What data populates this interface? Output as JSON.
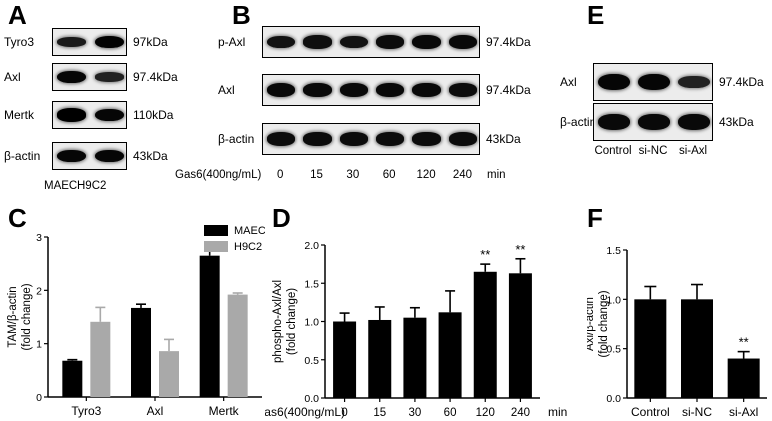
{
  "panels": {
    "A": {
      "letter": "A",
      "rows": [
        {
          "label": "Tyro3",
          "kda": "97kDa",
          "bands": [
            0.55,
            0.95
          ]
        },
        {
          "label": "Axl",
          "kda": "97.4kDa",
          "bands": [
            0.9,
            0.45
          ]
        },
        {
          "label": "Mertk",
          "kda": "110kDa",
          "bands": [
            1.0,
            0.9
          ]
        },
        {
          "label": "β-actin",
          "kda": "43kDa",
          "bands": [
            0.9,
            0.9
          ]
        }
      ],
      "lanes": [
        "MAEC",
        "H9C2"
      ]
    },
    "B": {
      "letter": "B",
      "rows": [
        {
          "label": "p-Axl",
          "kda": "97.4kDa",
          "bands": [
            0.7,
            0.75,
            0.7,
            0.8,
            0.85,
            0.85
          ]
        },
        {
          "label": "Axl",
          "kda": "97.4kDa",
          "bands": [
            0.85,
            0.85,
            0.85,
            0.85,
            0.85,
            0.8
          ]
        },
        {
          "label": "β-actin",
          "kda": "43kDa",
          "bands": [
            0.8,
            0.8,
            0.8,
            0.8,
            0.8,
            0.8
          ]
        }
      ],
      "gas6_label": "Gas6(400ng/mL)",
      "lanes": [
        "0",
        "15",
        "30",
        "60",
        "120",
        "240"
      ],
      "unit": "min"
    },
    "E": {
      "letter": "E",
      "rows": [
        {
          "label": "Axl",
          "kda": "97.4kDa",
          "bands": [
            0.9,
            0.9,
            0.45
          ]
        },
        {
          "label": "β-actin",
          "kda": "43kDa",
          "bands": [
            0.85,
            0.85,
            0.85
          ]
        }
      ],
      "lanes": [
        "Control",
        "si-NC",
        "si-Axl"
      ]
    }
  },
  "chart_data": [
    {
      "panel": "C",
      "type": "bar",
      "ylabel": "TAM/β-actin\n(fold change)",
      "categories": [
        "Tyro3",
        "Axl",
        "Mertk"
      ],
      "series": [
        {
          "name": "MAEC",
          "color": "#000000",
          "values": [
            0.68,
            1.67,
            2.65
          ],
          "errors": [
            0.02,
            0.07,
            0.2
          ]
        },
        {
          "name": "H9C2",
          "color": "#a9a9a9",
          "values": [
            1.41,
            0.86,
            1.92
          ],
          "errors": [
            0.27,
            0.22,
            0.03
          ]
        }
      ],
      "ylim": [
        0,
        3
      ],
      "yticks": [
        "0",
        "1",
        "2",
        "3"
      ],
      "legend": "top-right"
    },
    {
      "panel": "D",
      "type": "bar",
      "ylabel": "phospho-Axl/Axl\n(fold change)",
      "xprefix": "Gas6(400ng/mL)",
      "xunit": "min",
      "categories": [
        "0",
        "15",
        "30",
        "60",
        "120",
        "240"
      ],
      "series": [
        {
          "color": "#000000",
          "values": [
            1.0,
            1.02,
            1.05,
            1.12,
            1.65,
            1.63
          ],
          "errors": [
            0.11,
            0.17,
            0.13,
            0.28,
            0.1,
            0.19
          ]
        }
      ],
      "annotations": [
        "",
        "",
        "",
        "",
        "**",
        "**"
      ],
      "ylim": [
        0,
        2.0
      ],
      "yticks": [
        "0.0",
        "0.5",
        "1.0",
        "1.5",
        "2.0"
      ]
    },
    {
      "panel": "F",
      "type": "bar",
      "ylabel": "Axl/β-actin\n(fold change)",
      "categories": [
        "Control",
        "si-NC",
        "si-Axl"
      ],
      "series": [
        {
          "color": "#000000",
          "values": [
            1.0,
            1.0,
            0.4
          ],
          "errors": [
            0.13,
            0.15,
            0.07
          ]
        }
      ],
      "annotations": [
        "",
        "",
        "**"
      ],
      "ylim": [
        0,
        1.5
      ],
      "yticks": [
        "0.0",
        "0.5",
        "1.0",
        "1.5"
      ]
    }
  ],
  "chart_letters": [
    "C",
    "D",
    "F"
  ]
}
